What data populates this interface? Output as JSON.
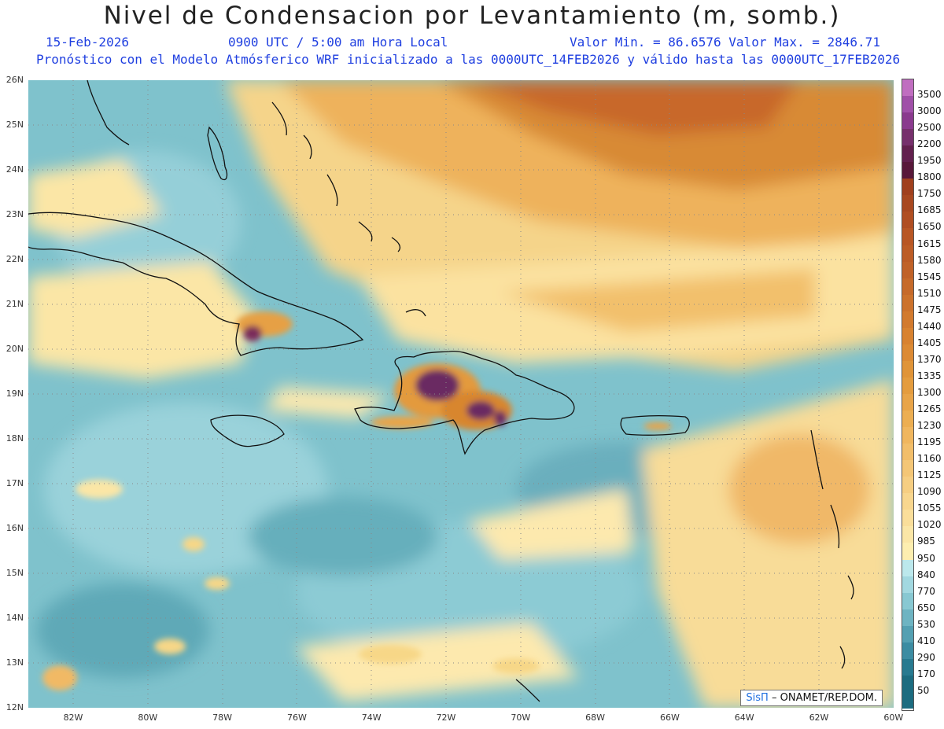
{
  "header": {
    "title": "Nivel de Condensacion por Levantamiento (m, somb.)",
    "date": "15-Feb-2026",
    "time": "0900 UTC / 5:00 am Hora Local",
    "minmax": "Valor Min. = 86.6576  Valor Max. = 2846.71",
    "model_info": "Pronóstico con el Modelo Atmósferico WRF inicializado a las 0000UTC_14FEB2026 y válido hasta las  0000UTC_17FEB2026"
  },
  "credit": {
    "brand": "SisΠ",
    "text": " – ONAMET/REP.DOM."
  },
  "map": {
    "lat_range": [
      12,
      26
    ],
    "lon_range": [
      -83.2,
      -60
    ],
    "lat_labels": [
      "26N",
      "25N",
      "24N",
      "23N",
      "22N",
      "21N",
      "20N",
      "19N",
      "18N",
      "17N",
      "16N",
      "15N",
      "14N",
      "13N",
      "12N"
    ],
    "lon_labels": [
      "82W",
      "80W",
      "78W",
      "76W",
      "74W",
      "72W",
      "70W",
      "68W",
      "66W",
      "64W",
      "62W",
      "60W"
    ]
  },
  "legend": {
    "levels": [
      "3500",
      "3000",
      "2500",
      "2200",
      "1950",
      "1800",
      "1750",
      "1685",
      "1650",
      "1615",
      "1580",
      "1545",
      "1510",
      "1475",
      "1440",
      "1405",
      "1370",
      "1335",
      "1300",
      "1265",
      "1230",
      "1195",
      "1160",
      "1125",
      "1090",
      "1055",
      "1020",
      "985",
      "950",
      "840",
      "770",
      "650",
      "530",
      "410",
      "290",
      "170",
      "50"
    ],
    "colors": [
      "#c06ec0",
      "#a050a8",
      "#8a3a8e",
      "#76306c",
      "#62204e",
      "#58183a",
      "#a0401e",
      "#a84820",
      "#b04e22",
      "#b85624",
      "#bc5c26",
      "#c06228",
      "#c66a2a",
      "#cc722c",
      "#d27a2e",
      "#d88230",
      "#dc8a34",
      "#e09438",
      "#e49c3e",
      "#e8a448",
      "#ecae52",
      "#f0b65e",
      "#f2be6a",
      "#f4c676",
      "#f6ce82",
      "#f8d68e",
      "#fade9a",
      "#fbe6a6",
      "#fdeeb0",
      "#bce8ec",
      "#a2d8e0",
      "#88c8d2",
      "#6eb4c2",
      "#54a0b2",
      "#3c8ca2",
      "#287a90",
      "#1c6c80"
    ]
  }
}
